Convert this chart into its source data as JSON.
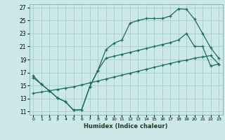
{
  "xlabel": "Humidex (Indice chaleur)",
  "bg_color": "#cce8e8",
  "grid_color": "#a8cccc",
  "line_color": "#1a6b5a",
  "xlim": [
    -0.5,
    23.5
  ],
  "ylim": [
    10.5,
    27.5
  ],
  "xticks": [
    0,
    1,
    2,
    3,
    4,
    5,
    6,
    7,
    8,
    9,
    10,
    11,
    12,
    13,
    14,
    15,
    16,
    17,
    18,
    19,
    20,
    21,
    22,
    23
  ],
  "yticks": [
    11,
    13,
    15,
    17,
    19,
    21,
    23,
    25,
    27
  ],
  "line1_x": [
    0,
    1,
    2,
    3,
    4,
    5,
    6,
    7,
    8,
    9,
    10,
    11,
    12,
    13,
    14,
    15,
    16,
    17,
    18,
    19,
    20,
    21,
    22,
    23
  ],
  "line1_y": [
    16.5,
    15.2,
    14.2,
    13.1,
    12.5,
    11.2,
    11.3,
    14.8,
    17.3,
    20.5,
    21.5,
    22.0,
    24.6,
    25.0,
    25.3,
    25.3,
    25.3,
    25.7,
    26.8,
    26.7,
    25.2,
    23.0,
    20.8,
    19.2
  ],
  "line2_x": [
    0,
    1,
    2,
    3,
    4,
    5,
    6,
    7,
    8,
    9,
    10,
    11,
    12,
    13,
    14,
    15,
    16,
    17,
    18,
    19,
    20,
    21,
    22,
    23
  ],
  "line2_y": [
    16.2,
    15.2,
    14.2,
    13.1,
    12.5,
    11.2,
    11.3,
    14.8,
    17.3,
    19.2,
    19.5,
    19.8,
    20.1,
    20.4,
    20.7,
    21.0,
    21.3,
    21.6,
    22.0,
    23.0,
    21.0,
    21.0,
    18.0,
    18.3
  ],
  "line3_x": [
    0,
    1,
    2,
    3,
    4,
    5,
    6,
    7,
    8,
    9,
    10,
    11,
    12,
    13,
    14,
    15,
    16,
    17,
    18,
    19,
    20,
    21,
    22,
    23
  ],
  "line3_y": [
    13.8,
    14.0,
    14.2,
    14.4,
    14.6,
    14.8,
    15.1,
    15.4,
    15.7,
    16.0,
    16.3,
    16.6,
    16.9,
    17.2,
    17.5,
    17.8,
    18.1,
    18.4,
    18.7,
    18.9,
    19.2,
    19.4,
    19.6,
    18.3
  ]
}
